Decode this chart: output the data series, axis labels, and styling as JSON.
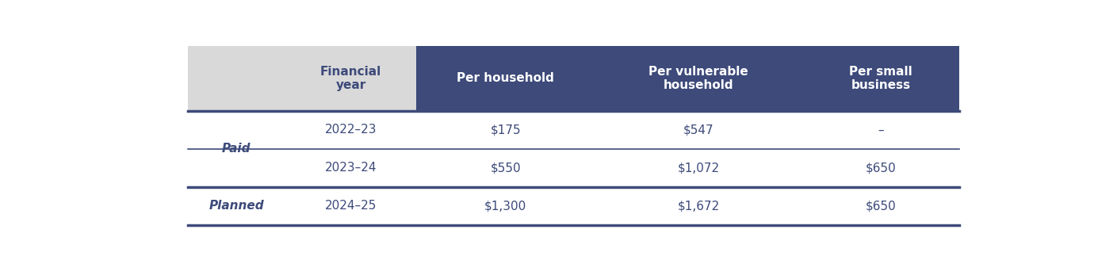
{
  "fig_width": 13.8,
  "fig_height": 3.33,
  "dpi": 100,
  "background_color": "#ffffff",
  "header_dark_bg": "#3d4a7a",
  "header_light_bg": "#d9d9d9",
  "header_text_color": "#ffffff",
  "header_light_text_color": "#3d4a7a",
  "body_text_color": "#3d4a7a",
  "divider_color": "#3d4a7a",
  "col_labels": [
    "Financial\nyear",
    "Per household",
    "Per vulnerable\nhousehold",
    "Per small\nbusiness"
  ],
  "row_labels": [
    "Paid",
    "Planned"
  ],
  "rows": [
    [
      "2022–23",
      "$175",
      "$547",
      "–"
    ],
    [
      "2023–24",
      "$550",
      "$1,072",
      "$650"
    ],
    [
      "2024–25",
      "$1,300",
      "$1,672",
      "$650"
    ]
  ],
  "row_group_map": [
    0,
    0,
    1
  ],
  "header_font_size": 11,
  "body_font_size": 11,
  "row_label_font_size": 11
}
